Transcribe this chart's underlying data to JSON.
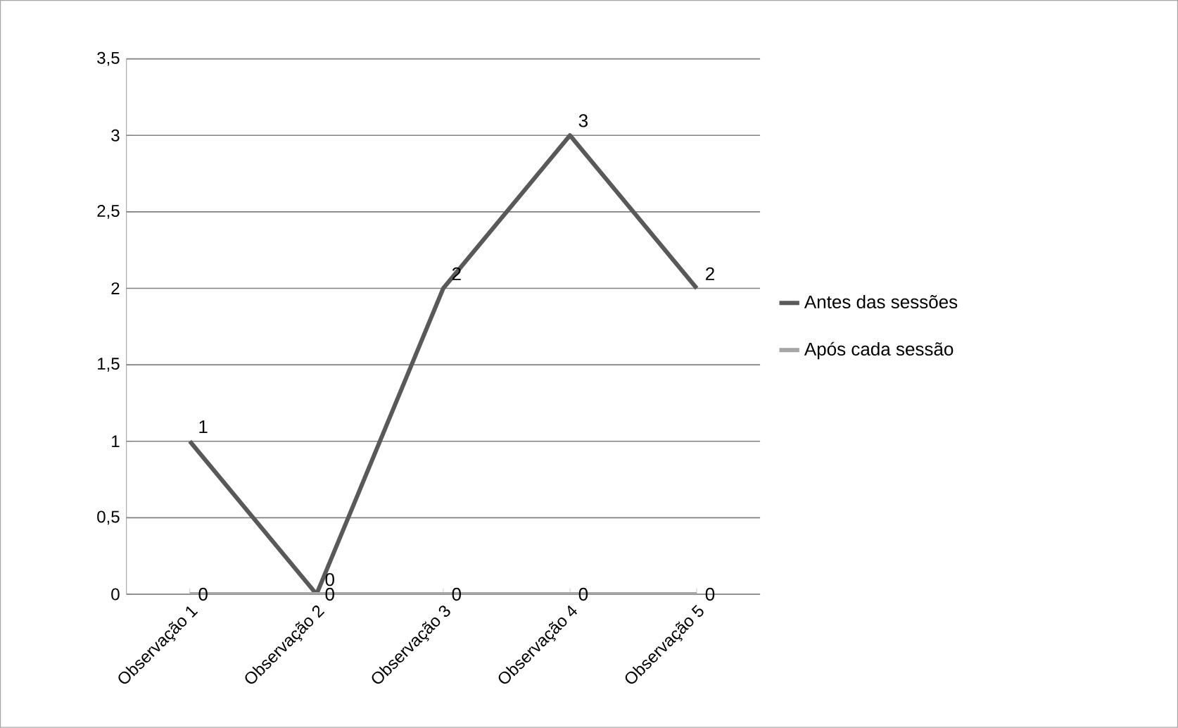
{
  "chart_data": {
    "type": "line",
    "categories": [
      "Observação 1",
      "Observação 2",
      "Observação 3",
      "Observação 4",
      "Observação 5"
    ],
    "series": [
      {
        "name": "Antes das sessões",
        "color": "#595959",
        "values": [
          1,
          0,
          2,
          3,
          2
        ]
      },
      {
        "name": "Após cada sessão",
        "color": "#a6a6a6",
        "values": [
          0,
          0,
          0,
          0,
          0
        ]
      }
    ],
    "ylim": [
      0,
      3.5
    ],
    "yticks": [
      0,
      {
        "value": 0.5,
        "label": "0,5"
      },
      1,
      {
        "value": 1.5,
        "label": "1,5"
      },
      2,
      {
        "value": 2.5,
        "label": "2,5"
      },
      3,
      {
        "value": 3.5,
        "label": "3,5"
      }
    ],
    "grid": "y",
    "legend": "right",
    "marker": "none",
    "line_style": "solid",
    "data_labels": true
  }
}
